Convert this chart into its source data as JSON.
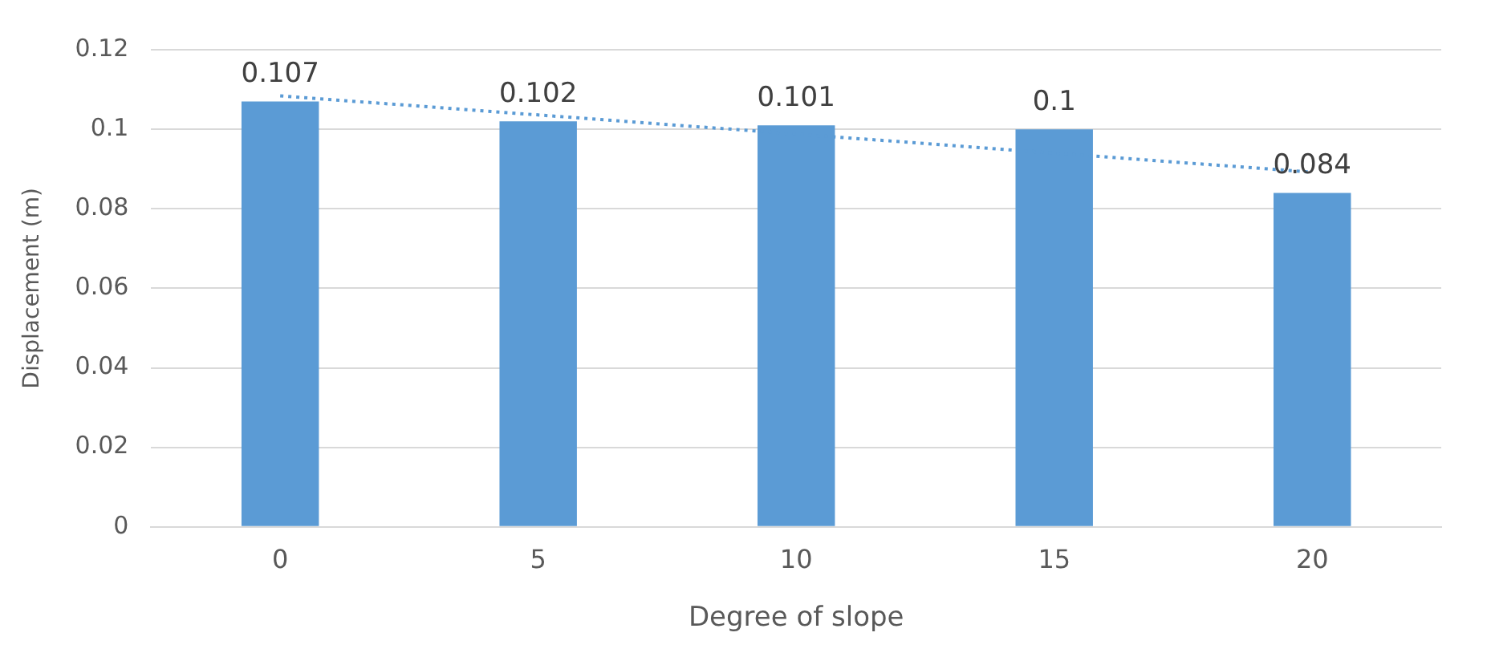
{
  "chart_data": {
    "type": "bar",
    "xlabel": "Degree of slope",
    "ylabel": "Displacement (m)",
    "categories": [
      "0",
      "5",
      "10",
      "15",
      "20"
    ],
    "series": [
      {
        "color": "#5b9bd5",
        "values": [
          0.107,
          0.102,
          0.101,
          0.1,
          0.084
        ],
        "value_labels": [
          "0.107",
          "0.102",
          "0.101",
          "0.1",
          "0.084"
        ]
      },
      {
        "type": "line",
        "color": "#5b9bd5",
        "values": [
          0.1084,
          0.1036,
          0.0988,
          0.094,
          0.0892
        ],
        "line_style": "dotted",
        "marker": "none"
      }
    ],
    "ylim": [
      0,
      0.12
    ],
    "yticks": [
      0,
      0.02,
      0.04,
      0.06,
      0.08,
      0.1,
      0.12
    ],
    "grid": "y",
    "legend": false
  }
}
